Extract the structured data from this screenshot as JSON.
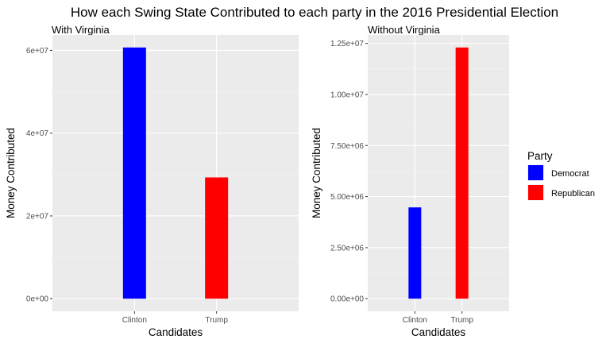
{
  "title": "How each Swing State Contributed to   each party in the 2016 Presidential Election",
  "legend": {
    "title": "Party",
    "entries": [
      {
        "label": "Democrat",
        "color": "#0000FF"
      },
      {
        "label": "Republican",
        "color": "#FF0000"
      }
    ]
  },
  "chart_data": [
    {
      "type": "bar",
      "subtitle": "With Virginia",
      "xlabel": "Candidates",
      "ylabel": "Money Contributed",
      "categories": [
        "Clinton",
        "Trump"
      ],
      "values": [
        60700000,
        29300000
      ],
      "colors": [
        "#0000FF",
        "#FF0000"
      ],
      "ylim": [
        -3035000,
        63735000
      ],
      "yticks": [
        0,
        20000000,
        40000000,
        60000000
      ],
      "ytick_labels": [
        "0e+00",
        "2e+07",
        "4e+07",
        "6e+07"
      ],
      "grid": true
    },
    {
      "type": "bar",
      "subtitle": "Without Virginia",
      "xlabel": "Candidates",
      "ylabel": "Money Contributed",
      "categories": [
        "Clinton",
        "Trump"
      ],
      "values": [
        4470000,
        12300000
      ],
      "colors": [
        "#0000FF",
        "#FF0000"
      ],
      "ylim": [
        -615000,
        12915000
      ],
      "yticks": [
        0,
        2500000,
        5000000,
        7500000,
        10000000,
        12500000
      ],
      "ytick_labels": [
        "0.00e+00",
        "2.50e+06",
        "5.00e+06",
        "7.50e+06",
        "1.00e+07",
        "1.25e+07"
      ],
      "grid": true
    }
  ]
}
